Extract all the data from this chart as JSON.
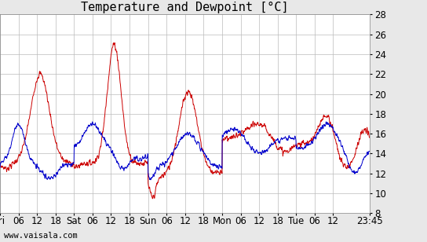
{
  "title": "Temperature and Dewpoint [°C]",
  "ylabel": "",
  "ylim": [
    8,
    28
  ],
  "yticks": [
    8,
    10,
    12,
    14,
    16,
    18,
    20,
    22,
    24,
    26,
    28
  ],
  "xtick_labels": [
    "Fri",
    "06",
    "12",
    "18",
    "Sat",
    "06",
    "12",
    "18",
    "Sun",
    "06",
    "12",
    "18",
    "Mon",
    "06",
    "12",
    "18",
    "Tue",
    "06",
    "12",
    "23:45"
  ],
  "xtick_positions": [
    0,
    6,
    12,
    18,
    24,
    30,
    36,
    42,
    48,
    54,
    60,
    66,
    72,
    78,
    84,
    90,
    96,
    102,
    108,
    119.75
  ],
  "total_hours": 119.75,
  "temp_color": "#cc0000",
  "dew_color": "#0000cc",
  "bg_color": "#e8e8e8",
  "plot_bg": "#ffffff",
  "grid_color": "#bbbbbb",
  "watermark": "www.vaisala.com",
  "title_fontsize": 11,
  "tick_fontsize": 8.5,
  "watermark_fontsize": 7.5
}
